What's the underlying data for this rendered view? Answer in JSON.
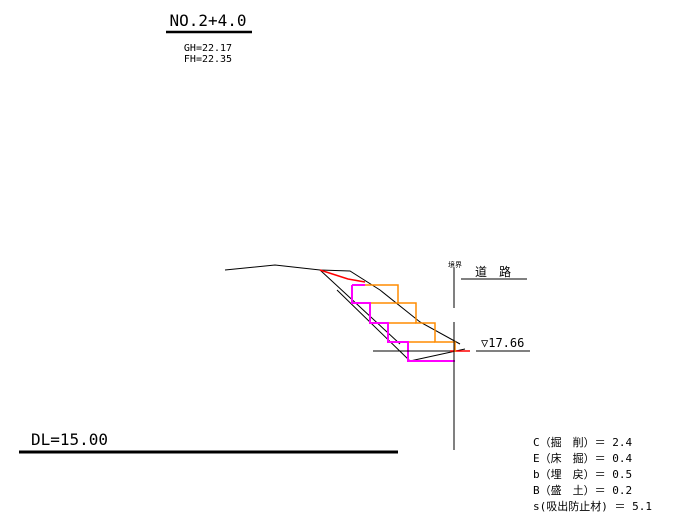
{
  "header": {
    "station": "NO.2+4.0",
    "ground_height": "GH=22.17",
    "formation_height": "FH=22.35"
  },
  "datum": {
    "label": "DL=15.00"
  },
  "boundary": {
    "label": "境界",
    "road_label": "道　路"
  },
  "water_level": {
    "label": "▽17.66"
  },
  "quantities": [
    {
      "label": "C（掘　削）＝ 2.4"
    },
    {
      "label": "E（床　掘）＝ 0.4"
    },
    {
      "label": "b（埋　戻）＝ 0.5"
    },
    {
      "label": "B（盛　土）＝ 0.2"
    },
    {
      "label": "s(吸出防止材) ＝ 5.1"
    }
  ],
  "colors": {
    "line": "#000000",
    "orange": "#FF8C00",
    "magenta": "#FF00FF",
    "red": "#FF0000"
  }
}
